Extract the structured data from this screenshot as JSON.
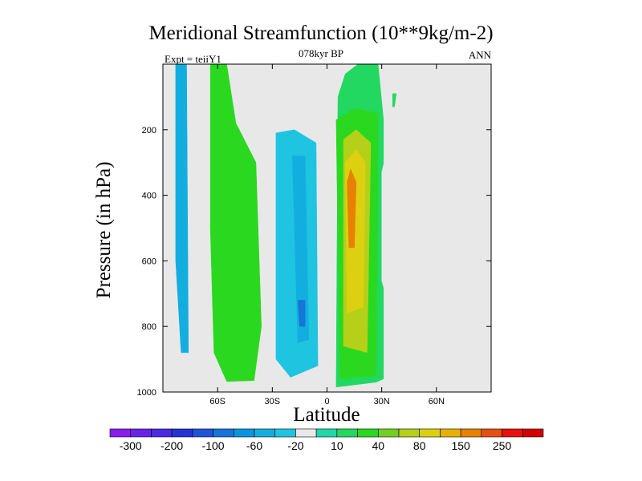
{
  "chart_data": {
    "type": "heatmap",
    "title": "Meridional Streamfunction (10**9kg/m-2)",
    "subtitle": "078kyr BP",
    "left_label": "Expt = teiiY1",
    "right_label": "ANN",
    "xlabel": "Latitude",
    "ylabel": "Pressure (in hPa)",
    "xlim": [
      -90,
      90
    ],
    "ylim": [
      1000,
      0
    ],
    "x_ticks": [
      {
        "value": -60,
        "label": "60S"
      },
      {
        "value": -30,
        "label": "30S"
      },
      {
        "value": 0,
        "label": "0"
      },
      {
        "value": 30,
        "label": "30N"
      },
      {
        "value": 60,
        "label": "60N"
      }
    ],
    "y_ticks": [
      {
        "value": 200,
        "label": "200"
      },
      {
        "value": 400,
        "label": "400"
      },
      {
        "value": 600,
        "label": "600"
      },
      {
        "value": 800,
        "label": "800"
      },
      {
        "value": 1000,
        "label": "1000"
      }
    ],
    "colorbar": {
      "levels": [
        -300,
        -250,
        -200,
        -150,
        -100,
        -80,
        -60,
        -40,
        -20,
        -10,
        10,
        20,
        40,
        60,
        80,
        100,
        150,
        200,
        250,
        300
      ],
      "labels": [
        {
          "value": -300,
          "label": "-300"
        },
        {
          "value": -200,
          "label": "-200"
        },
        {
          "value": -100,
          "label": "-100"
        },
        {
          "value": -60,
          "label": "-60"
        },
        {
          "value": -20,
          "label": "-20"
        },
        {
          "value": 10,
          "label": "10"
        },
        {
          "value": 40,
          "label": "40"
        },
        {
          "value": 80,
          "label": "80"
        },
        {
          "value": 150,
          "label": "150"
        },
        {
          "value": 250,
          "label": "250"
        }
      ],
      "colors": [
        "#8a1cee",
        "#6a22ea",
        "#4a2ae4",
        "#2432d8",
        "#1e54dc",
        "#1476d8",
        "#0b95e0",
        "#13aee0",
        "#1fc4e0",
        "#e8e8e8",
        "#20d8a8",
        "#22d860",
        "#2ad820",
        "#74d020",
        "#b4d018",
        "#dcd010",
        "#e8b000",
        "#e88000",
        "#e65010",
        "#e81010",
        "#d40000"
      ]
    },
    "background_color": "#e8e8e8",
    "regions": [
      {
        "name": "south-polar-cell-outer",
        "value": -15,
        "points": [
          [
            -87,
            0
          ],
          [
            -74,
            0
          ],
          [
            -72,
            900
          ],
          [
            -74,
            965
          ],
          [
            -78,
            970
          ],
          [
            -85,
            855
          ],
          [
            -90,
            780
          ],
          [
            -90,
            300
          ]
        ]
      },
      {
        "name": "south-polar-cell-core",
        "value": -45,
        "points": [
          [
            -83,
            0
          ],
          [
            -77,
            0
          ],
          [
            -76,
            880
          ],
          [
            -80,
            880
          ],
          [
            -83,
            600
          ]
        ]
      },
      {
        "name": "south-mid-positive-cell",
        "value": 30,
        "points": [
          [
            -64,
            0
          ],
          [
            -55,
            0
          ],
          [
            -50,
            180
          ],
          [
            -39,
            300
          ],
          [
            -36,
            800
          ],
          [
            -40,
            965
          ],
          [
            -55,
            968
          ],
          [
            -62,
            880
          ],
          [
            -64,
            500
          ]
        ]
      },
      {
        "name": "south-hadley-outer",
        "value": -15,
        "points": [
          [
            -32,
            170
          ],
          [
            -20,
            155
          ],
          [
            -2,
            185
          ],
          [
            -1,
            970
          ],
          [
            -6,
            985
          ],
          [
            -25,
            985
          ],
          [
            -33,
            900
          ]
        ]
      },
      {
        "name": "south-hadley-mid",
        "value": -35,
        "points": [
          [
            -28,
            210
          ],
          [
            -18,
            200
          ],
          [
            -6,
            240
          ],
          [
            -5,
            920
          ],
          [
            -20,
            955
          ],
          [
            -28,
            900
          ]
        ]
      },
      {
        "name": "south-hadley-core",
        "value": -60,
        "points": [
          [
            -19,
            280
          ],
          [
            -12,
            280
          ],
          [
            -10,
            840
          ],
          [
            -16,
            850
          ]
        ]
      },
      {
        "name": "south-hadley-max",
        "value": -90,
        "points": [
          [
            -16,
            720
          ],
          [
            -12,
            720
          ],
          [
            -12,
            800
          ],
          [
            -15,
            800
          ]
        ]
      },
      {
        "name": "north-hadley-outer",
        "value": 15,
        "points": [
          [
            6,
            100
          ],
          [
            10,
            30
          ],
          [
            17,
            0
          ],
          [
            28,
            0
          ],
          [
            31,
            170
          ],
          [
            31,
            960
          ],
          [
            27,
            970
          ],
          [
            5,
            985
          ]
        ]
      },
      {
        "name": "north-hadley-mid",
        "value": 30,
        "points": [
          [
            5,
            170
          ],
          [
            15,
            135
          ],
          [
            28,
            150
          ],
          [
            27,
            950
          ],
          [
            7,
            960
          ]
        ]
      },
      {
        "name": "north-hadley-inner",
        "value": 60,
        "points": [
          [
            9,
            230
          ],
          [
            16,
            200
          ],
          [
            24,
            240
          ],
          [
            22,
            880
          ],
          [
            9,
            860
          ]
        ]
      },
      {
        "name": "north-hadley-strong",
        "value": 90,
        "points": [
          [
            10,
            300
          ],
          [
            16,
            260
          ],
          [
            21,
            300
          ],
          [
            20,
            740
          ],
          [
            11,
            760
          ]
        ]
      },
      {
        "name": "north-hadley-core",
        "value": 150,
        "points": [
          [
            11,
            360
          ],
          [
            13,
            320
          ],
          [
            16,
            360
          ],
          [
            15,
            560
          ],
          [
            12,
            560
          ]
        ]
      },
      {
        "name": "north-ferrel-cell",
        "value": -15,
        "points": [
          [
            33,
            260
          ],
          [
            42,
            220
          ],
          [
            49,
            360
          ],
          [
            53,
            520
          ],
          [
            51,
            800
          ],
          [
            46,
            820
          ],
          [
            44,
            780
          ],
          [
            39,
            850
          ],
          [
            35,
            760
          ],
          [
            30,
            660
          ],
          [
            30,
            330
          ]
        ]
      },
      {
        "name": "north-upper-cell",
        "value": -15,
        "points": [
          [
            68,
            0
          ],
          [
            78,
            0
          ],
          [
            75,
            90
          ],
          [
            74,
            190
          ],
          [
            71,
            190
          ],
          [
            70,
            110
          ],
          [
            58,
            110
          ]
        ]
      },
      {
        "name": "north-upper-tongue",
        "value": 15,
        "points": [
          [
            36,
            90
          ],
          [
            38,
            90
          ],
          [
            37,
            130
          ],
          [
            36,
            130
          ]
        ]
      },
      {
        "name": "north-upper-speck",
        "value": -15,
        "points": [
          [
            59,
            20
          ],
          [
            60,
            20
          ],
          [
            60,
            40
          ],
          [
            59,
            40
          ]
        ]
      }
    ]
  }
}
